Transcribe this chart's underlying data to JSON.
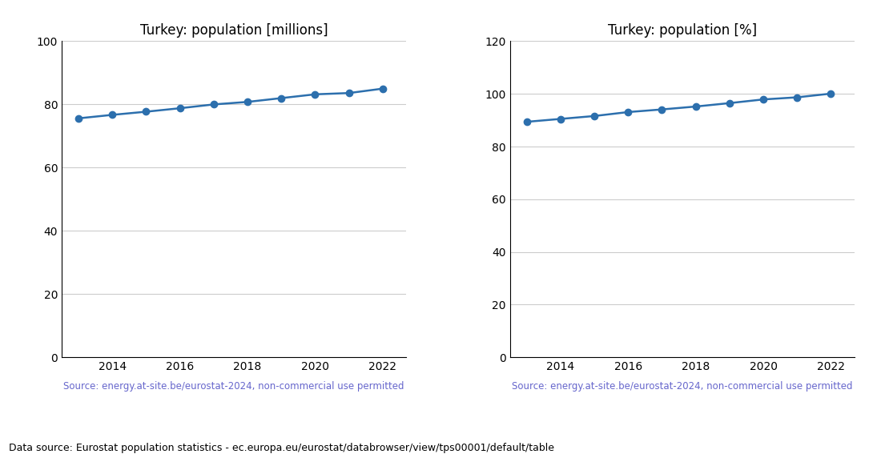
{
  "years": [
    2013,
    2014,
    2015,
    2016,
    2017,
    2018,
    2019,
    2020,
    2021,
    2022
  ],
  "pop_millions": [
    75.6,
    76.7,
    77.7,
    78.8,
    80.0,
    80.8,
    82.0,
    83.2,
    83.6,
    85.0
  ],
  "pop_percent": [
    89.4,
    90.5,
    91.6,
    93.1,
    94.1,
    95.2,
    96.5,
    97.9,
    98.7,
    100.1
  ],
  "title_millions": "Turkey: population [millions]",
  "title_percent": "Turkey: population [%]",
  "source_text": "Source: energy.at-site.be/eurostat-2024, non-commercial use permitted",
  "footer_text": "Data source: Eurostat population statistics - ec.europa.eu/eurostat/databrowser/view/tps00001/default/table",
  "line_color": "#2c6fad",
  "source_color": "#6666cc",
  "ylim_millions": [
    0,
    100
  ],
  "ylim_percent": [
    0,
    120
  ],
  "yticks_millions": [
    0,
    20,
    40,
    60,
    80,
    100
  ],
  "yticks_percent": [
    0,
    20,
    40,
    60,
    80,
    100,
    120
  ],
  "grid_color": "#cccccc",
  "marker_size": 6,
  "linewidth": 1.8
}
